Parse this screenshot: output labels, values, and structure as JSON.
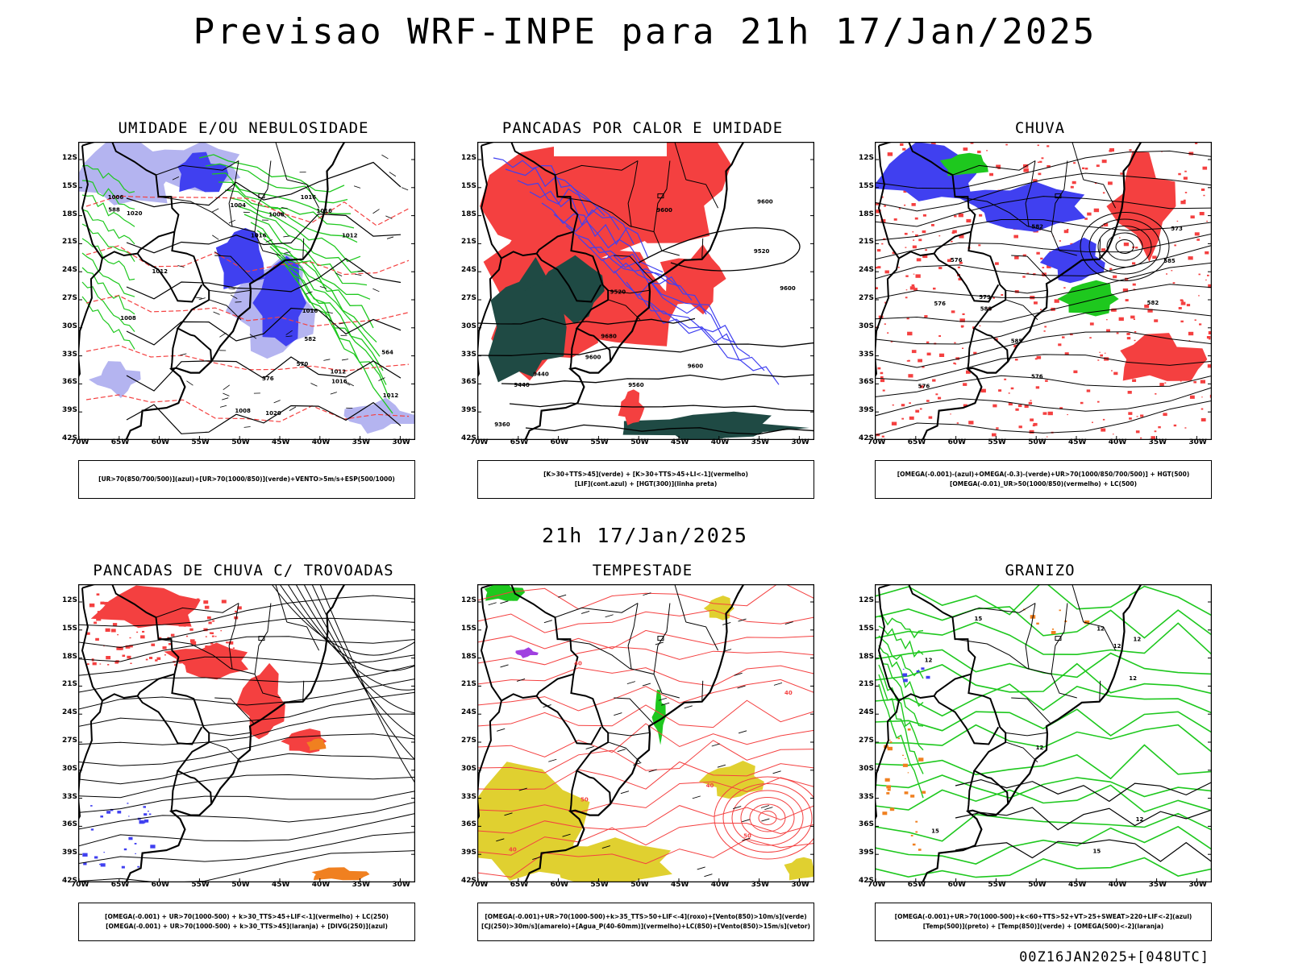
{
  "title": "Previsao WRF-INPE  para 21h 17/Jan/2025",
  "subtitle": "21h 17/Jan/2025",
  "footer": "00Z16JAN2025+[048UTC]",
  "axes": {
    "lat_labels": [
      "12S",
      "15S",
      "18S",
      "21S",
      "24S",
      "27S",
      "30S",
      "33S",
      "36S",
      "39S",
      "42S"
    ],
    "lon_labels": [
      "70W",
      "65W",
      "60W",
      "55W",
      "50W",
      "45W",
      "40W",
      "35W",
      "30W"
    ]
  },
  "colors": {
    "red": "#f44040",
    "blue": "#4040f0",
    "green": "#1ec81e",
    "darkgreen": "#1f4a44",
    "lightblue": "#b4b4f0",
    "yellow": "#e0d030",
    "orange": "#f08020",
    "purple": "#a040e0"
  },
  "panels": [
    {
      "id": "umidade",
      "title": "UMIDADE E/OU NEBULOSIDADE",
      "legend": [
        "[UR>70(850/700/500)](azul)+[UR>70(1000/850)](verde)+VENTO>5m/s+ESP(500/1000)"
      ],
      "contour_labels": [
        "1016",
        "1016",
        "1006",
        "1012",
        "1008",
        "1004",
        "1020",
        "1016",
        "1012",
        "1008",
        "1012",
        "1008",
        "1016",
        "1020",
        "1012",
        "1016",
        "564",
        "570",
        "576",
        "582",
        "588"
      ]
    },
    {
      "id": "pancadas-calor",
      "title": "PANCADAS POR CALOR E UMIDADE",
      "legend": [
        "[K>30+TTS>45](verde) + [K>30+TTS>45+LI<-1](vermelho)",
        "[LIF](cont.azul) + [HGT(300)](linha preta)"
      ],
      "contour_labels": [
        "9600",
        "9600",
        "9560",
        "9600",
        "9600",
        "9520",
        "9600",
        "9520",
        "9440",
        "9360",
        "9440",
        "9680"
      ]
    },
    {
      "id": "chuva",
      "title": "CHUVA",
      "legend": [
        "[OMEGA(-0.001)-(azul)+OMEGA(-0.3)-(verde)+UR>70(1000/850/700/500)] + HGT(500)",
        "[OMEGA(-0.01)_UR>50(1000/850)(vermelho) + LC(500)"
      ],
      "contour_labels": [
        "585",
        "588",
        "582",
        "582",
        "576",
        "579",
        "576",
        "576",
        "573",
        "585",
        "576"
      ]
    },
    {
      "id": "trovoadas",
      "title": "PANCADAS DE CHUVA C/ TROVOADAS",
      "legend": [
        "[OMEGA(-0.001) + UR>70(1000-500) + k>30_TTS>45+LIF<-1](vermelho) + LC(250)",
        "[OMEGA(-0.001) + UR>70(1000-500) + k>30_TTS>45](laranja) + [DIVG(250)](azul)"
      ],
      "contour_labels": []
    },
    {
      "id": "tempestade",
      "title": "TEMPESTADE",
      "legend": [
        "[OMEGA(-0.001)+UR>70(1000-500)+k>35_TTS>50+LIF<-4](roxo)+[Vento(850)>10m/s](verde)",
        "[CJ(250)>30m/s](amarelo)+[Agua_P(40-60mm)](vermelho)+LC(850)+[Vento(850)>15m/s](vetor)"
      ],
      "contour_labels": [
        "50",
        "40",
        "40",
        "50",
        "40",
        "40"
      ]
    },
    {
      "id": "granizo",
      "title": "GRANIZO",
      "legend": [
        "[OMEGA(-0.001)+UR>70(1000-500)+k<60+TTS>52+VT>25+SWEAT>220+LIF<-2](azul)",
        "[Temp(500)](preto) + [Temp(850)](verde) + [OMEGA(500)<-2](laranja)"
      ],
      "contour_labels": [
        "15",
        "12",
        "15",
        "12",
        "12",
        "15",
        "12",
        "12",
        "12",
        "12"
      ]
    }
  ]
}
